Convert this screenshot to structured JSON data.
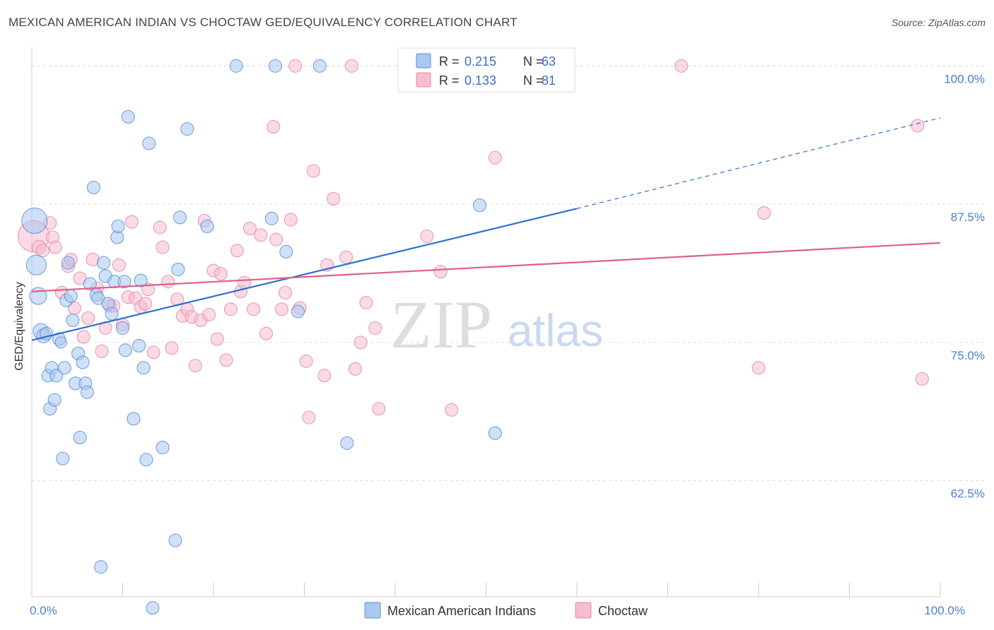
{
  "title": "MEXICAN AMERICAN INDIAN VS CHOCTAW GED/EQUIVALENCY CORRELATION CHART",
  "source": "Source: ZipAtlas.com",
  "colors": {
    "blue_fill": "#aac8f0",
    "blue_stroke": "#5b8fd6",
    "blue_line": "#2d6fd1",
    "pink_fill": "#f6bcd0",
    "pink_stroke": "#e68aa8",
    "pink_line": "#e0608a",
    "tick_text": "#4a7fd0",
    "grid": "#dddddd"
  },
  "legend": {
    "series1": {
      "r_label": "R = ",
      "r_value": "0.215",
      "n_label": "N = ",
      "n_value": "63"
    },
    "series2": {
      "r_label": "R = ",
      "r_value": "0.133",
      "n_label": "N = ",
      "n_value": "81"
    }
  },
  "bottom_legend": {
    "series1": "Mexican American Indians",
    "series2": "Choctaw"
  },
  "watermark": {
    "zip": "ZIP",
    "atlas": "atlas"
  },
  "chart_data": {
    "type": "scatter",
    "xlabel": "",
    "ylabel": "GED/Equivalency",
    "xlim": [
      0,
      100
    ],
    "ylim": [
      52,
      102
    ],
    "x_tick_labels": [
      {
        "value": 0,
        "label": "0.0%"
      },
      {
        "value": 100,
        "label": "100.0%"
      }
    ],
    "y_ticks": [
      {
        "value": 62.5,
        "label": "62.5%"
      },
      {
        "value": 75.0,
        "label": "75.0%"
      },
      {
        "value": 87.5,
        "label": "87.5%"
      },
      {
        "value": 100.0,
        "label": "100.0%"
      }
    ],
    "grid": true,
    "legend_position": "top-center",
    "series": [
      {
        "name": "Mexican American Indians",
        "color": "#5b8fd6",
        "r": 0.215,
        "n": 63,
        "trend": {
          "x": [
            0,
            60
          ],
          "y": [
            75.2,
            87.1
          ],
          "dashed_to": [
            100,
            95.3
          ]
        },
        "points": [
          [
            0.3,
            86.0,
            18
          ],
          [
            0.5,
            82.0,
            14
          ],
          [
            0.7,
            79.2,
            12
          ],
          [
            1.0,
            76.0,
            11
          ],
          [
            1.3,
            75.6,
            10
          ],
          [
            1.6,
            75.8,
            9
          ],
          [
            1.8,
            72.0,
            9
          ],
          [
            2.0,
            69.0,
            9
          ],
          [
            2.2,
            72.7,
            9
          ],
          [
            2.5,
            69.8,
            9
          ],
          [
            2.7,
            72.0,
            9
          ],
          [
            3.0,
            75.3,
            9
          ],
          [
            3.4,
            64.5,
            9
          ],
          [
            3.6,
            72.7,
            9
          ],
          [
            3.8,
            78.8,
            9
          ],
          [
            4.0,
            82.2,
            9
          ],
          [
            4.3,
            79.2,
            9
          ],
          [
            4.5,
            77.0,
            9
          ],
          [
            4.8,
            71.3,
            9
          ],
          [
            5.1,
            74.0,
            9
          ],
          [
            5.3,
            66.4,
            9
          ],
          [
            5.6,
            73.2,
            9
          ],
          [
            5.9,
            71.3,
            9
          ],
          [
            6.1,
            70.5,
            9
          ],
          [
            6.4,
            80.3,
            9
          ],
          [
            6.8,
            89.0,
            9
          ],
          [
            7.1,
            79.3,
            9
          ],
          [
            7.3,
            79.0,
            9
          ],
          [
            7.6,
            54.7,
            9
          ],
          [
            7.9,
            82.2,
            9
          ],
          [
            8.1,
            81.0,
            9
          ],
          [
            8.4,
            78.5,
            9
          ],
          [
            8.8,
            77.6,
            9
          ],
          [
            9.1,
            80.5,
            9
          ],
          [
            9.4,
            84.5,
            9
          ],
          [
            9.5,
            85.5,
            9
          ],
          [
            10.0,
            76.3,
            9
          ],
          [
            10.2,
            80.5,
            9
          ],
          [
            10.3,
            74.3,
            9
          ],
          [
            10.6,
            95.4,
            9
          ],
          [
            11.2,
            68.1,
            9
          ],
          [
            11.8,
            74.7,
            9
          ],
          [
            12.0,
            80.6,
            9
          ],
          [
            12.3,
            72.7,
            9
          ],
          [
            12.6,
            64.4,
            9
          ],
          [
            12.9,
            93.0,
            9
          ],
          [
            13.3,
            51.0,
            9
          ],
          [
            14.4,
            65.5,
            9
          ],
          [
            15.8,
            57.1,
            9
          ],
          [
            16.1,
            81.6,
            9
          ],
          [
            16.3,
            86.3,
            9
          ],
          [
            17.1,
            94.3,
            9
          ],
          [
            19.3,
            85.5,
            9
          ],
          [
            22.5,
            100.0,
            9
          ],
          [
            26.4,
            86.2,
            9
          ],
          [
            26.8,
            100.0,
            9
          ],
          [
            28.0,
            83.2,
            9
          ],
          [
            29.3,
            77.8,
            9
          ],
          [
            31.7,
            100.0,
            9
          ],
          [
            34.7,
            65.9,
            9
          ],
          [
            49.3,
            87.4,
            9
          ],
          [
            51.0,
            66.8,
            9
          ],
          [
            3.2,
            75.0,
            8
          ]
        ]
      },
      {
        "name": "Choctaw",
        "color": "#e68aa8",
        "r": 0.133,
        "n": 81,
        "trend": {
          "x": [
            0,
            100
          ],
          "y": [
            79.6,
            84.0
          ]
        },
        "points": [
          [
            0.2,
            84.6,
            22
          ],
          [
            0.8,
            83.6,
            10
          ],
          [
            1.2,
            83.3,
            9
          ],
          [
            2.0,
            85.8,
            9
          ],
          [
            2.3,
            84.5,
            9
          ],
          [
            2.6,
            83.6,
            9
          ],
          [
            3.3,
            79.5,
            9
          ],
          [
            4.0,
            81.9,
            9
          ],
          [
            4.3,
            82.5,
            9
          ],
          [
            4.7,
            78.1,
            9
          ],
          [
            5.3,
            80.8,
            9
          ],
          [
            5.7,
            75.5,
            9
          ],
          [
            6.2,
            77.2,
            9
          ],
          [
            6.7,
            82.5,
            9
          ],
          [
            7.2,
            79.9,
            9
          ],
          [
            7.7,
            74.2,
            9
          ],
          [
            8.1,
            76.3,
            9
          ],
          [
            8.6,
            78.3,
            9
          ],
          [
            9.0,
            78.3,
            9
          ],
          [
            9.6,
            82.0,
            9
          ],
          [
            10.0,
            76.6,
            9
          ],
          [
            10.6,
            79.1,
            9
          ],
          [
            11.0,
            85.9,
            9
          ],
          [
            11.4,
            79.0,
            9
          ],
          [
            12.0,
            78.2,
            9
          ],
          [
            12.5,
            78.5,
            9
          ],
          [
            12.8,
            79.8,
            9
          ],
          [
            13.4,
            74.1,
            9
          ],
          [
            14.1,
            85.4,
            9
          ],
          [
            14.4,
            83.6,
            9
          ],
          [
            15.0,
            80.5,
            9
          ],
          [
            15.4,
            74.5,
            9
          ],
          [
            16.0,
            78.9,
            9
          ],
          [
            16.6,
            77.4,
            9
          ],
          [
            17.1,
            78.0,
            9
          ],
          [
            17.6,
            77.3,
            9
          ],
          [
            18.0,
            72.9,
            9
          ],
          [
            18.6,
            77.0,
            9
          ],
          [
            19.0,
            86.0,
            9
          ],
          [
            19.5,
            77.5,
            9
          ],
          [
            20.0,
            81.5,
            9
          ],
          [
            20.4,
            75.3,
            9
          ],
          [
            20.8,
            81.2,
            9
          ],
          [
            21.4,
            73.4,
            9
          ],
          [
            21.9,
            78.0,
            9
          ],
          [
            22.6,
            83.3,
            9
          ],
          [
            23.0,
            79.6,
            9
          ],
          [
            23.4,
            80.4,
            9
          ],
          [
            24.0,
            85.3,
            9
          ],
          [
            24.4,
            78.0,
            9
          ],
          [
            25.2,
            84.7,
            9
          ],
          [
            25.8,
            75.8,
            9
          ],
          [
            26.6,
            94.5,
            9
          ],
          [
            26.9,
            84.3,
            9
          ],
          [
            27.5,
            78.0,
            9
          ],
          [
            27.9,
            79.5,
            9
          ],
          [
            28.5,
            86.1,
            9
          ],
          [
            29.0,
            100.0,
            9
          ],
          [
            29.5,
            78.1,
            9
          ],
          [
            30.2,
            73.3,
            9
          ],
          [
            30.5,
            68.2,
            9
          ],
          [
            31.0,
            90.5,
            9
          ],
          [
            32.2,
            72.0,
            9
          ],
          [
            32.5,
            82.0,
            9
          ],
          [
            33.2,
            88.0,
            9
          ],
          [
            34.6,
            82.7,
            9
          ],
          [
            35.2,
            100.0,
            9
          ],
          [
            35.6,
            72.6,
            9
          ],
          [
            36.2,
            75.0,
            9
          ],
          [
            36.8,
            78.6,
            9
          ],
          [
            37.8,
            76.3,
            9
          ],
          [
            38.2,
            69.0,
            9
          ],
          [
            43.5,
            84.6,
            9
          ],
          [
            45.0,
            81.4,
            9
          ],
          [
            46.2,
            68.9,
            9
          ],
          [
            51.0,
            91.7,
            9
          ],
          [
            71.5,
            100.0,
            9
          ],
          [
            80.0,
            72.7,
            9
          ],
          [
            80.6,
            86.7,
            9
          ],
          [
            97.5,
            94.6,
            9
          ],
          [
            98.0,
            71.7,
            9
          ]
        ]
      }
    ]
  }
}
